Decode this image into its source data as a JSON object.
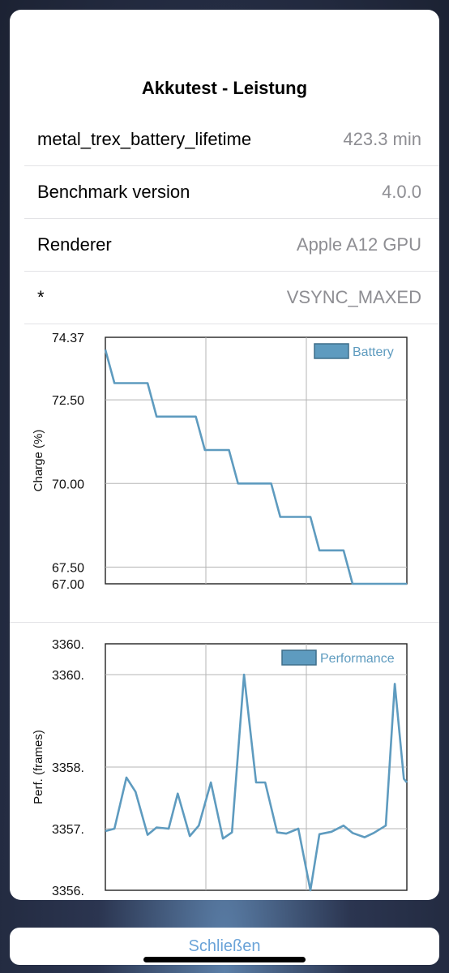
{
  "title": "Akkutest - Leistung",
  "rows": [
    {
      "label": "metal_trex_battery_lifetime",
      "value": "423.3  min"
    },
    {
      "label": "Benchmark version",
      "value": "4.0.0"
    },
    {
      "label": "Renderer",
      "value": "Apple A12 GPU"
    },
    {
      "label": "*",
      "value": "VSYNC_MAXED"
    }
  ],
  "close_label": "Schließen",
  "colors": {
    "series": "#5e9bbf",
    "accent": "#6aa3d8"
  },
  "chart_data": [
    {
      "type": "line",
      "ylabel": "Charge (%)",
      "y_ticks": [
        "74.37",
        "72.50",
        "70.00",
        "67.50",
        "67.00"
      ],
      "y_tick_values": [
        74.37,
        72.5,
        70.0,
        67.5,
        67.0
      ],
      "ylim": [
        67.0,
        74.37
      ],
      "legend": "Battery",
      "legend_position": "top-right",
      "grid": true,
      "series": [
        {
          "name": "Battery",
          "x": [
            0,
            0.03,
            0.14,
            0.17,
            0.3,
            0.33,
            0.41,
            0.44,
            0.55,
            0.58,
            0.68,
            0.71,
            0.79,
            0.82,
            0.91,
            0.94,
            1.0
          ],
          "values": [
            74.0,
            73.0,
            73.0,
            72.0,
            72.0,
            71.0,
            71.0,
            70.0,
            70.0,
            69.0,
            69.0,
            68.0,
            68.0,
            67.0,
            67.0,
            67.0,
            67.0
          ]
        }
      ]
    },
    {
      "type": "line",
      "ylabel": "Perf. (frames)",
      "y_ticks": [
        "3360.",
        "3360.",
        "3358.",
        "3357.",
        "3356."
      ],
      "y_tick_values": [
        3360.0,
        3359.5,
        3358.0,
        3357.0,
        3356.0
      ],
      "ylim": [
        3356.0,
        3360.0
      ],
      "legend": "Performance",
      "legend_position": "top-right",
      "grid": true,
      "series": [
        {
          "name": "Performance",
          "x": [
            0,
            0.03,
            0.07,
            0.1,
            0.14,
            0.17,
            0.21,
            0.24,
            0.28,
            0.31,
            0.35,
            0.39,
            0.42,
            0.46,
            0.5,
            0.53,
            0.57,
            0.6,
            0.64,
            0.68,
            0.71,
            0.75,
            0.79,
            0.82,
            0.86,
            0.89,
            0.93,
            0.96,
            0.99,
            1.0
          ],
          "values": [
            3356.96,
            3357.0,
            3357.83,
            3357.6,
            3356.9,
            3357.02,
            3357.0,
            3357.57,
            3356.88,
            3357.05,
            3357.75,
            3356.84,
            3356.94,
            3359.5,
            3357.75,
            3357.75,
            3356.94,
            3356.92,
            3357.0,
            3356.0,
            3356.91,
            3356.95,
            3357.05,
            3356.93,
            3356.86,
            3356.93,
            3357.05,
            3359.35,
            3357.81,
            3357.75
          ]
        }
      ]
    }
  ]
}
